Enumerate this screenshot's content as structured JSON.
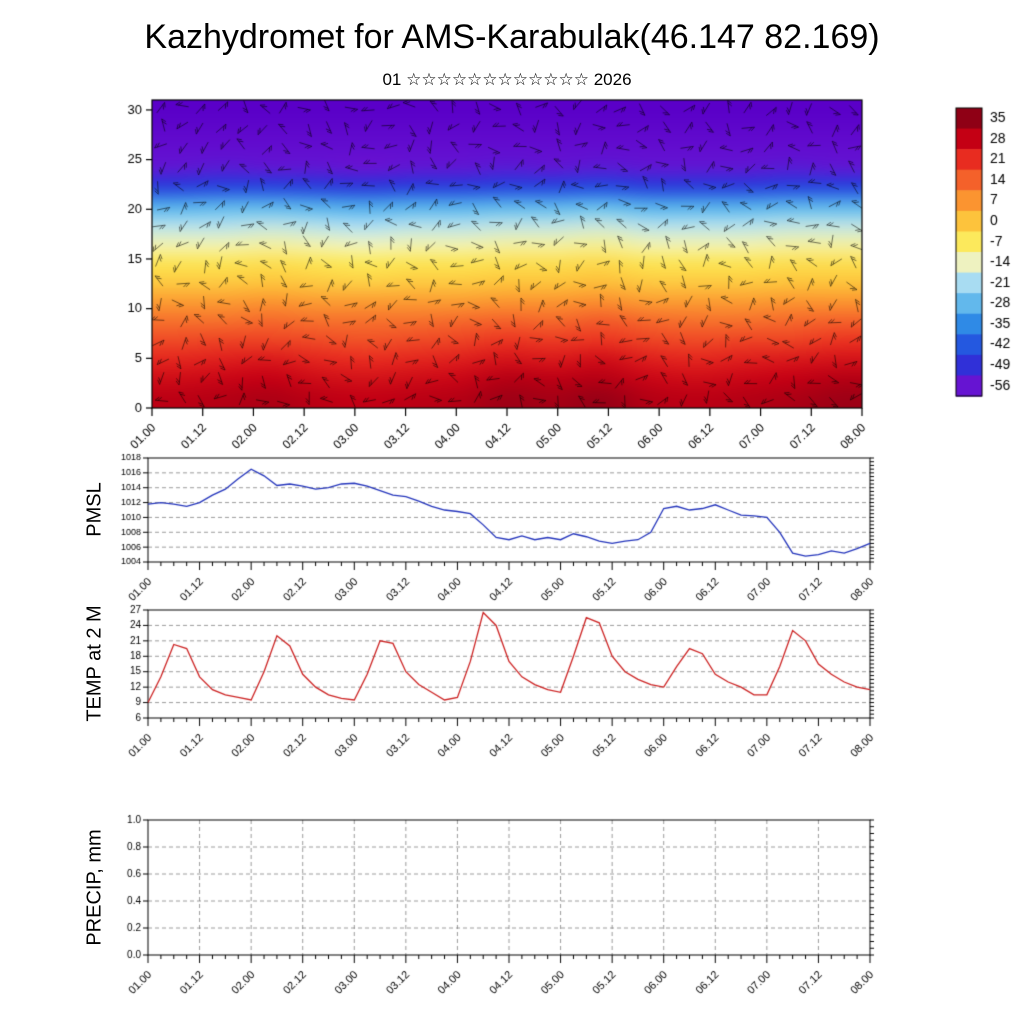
{
  "title": "Kazhydromet for AMS-Karabulak(46.147 82.169)",
  "subtitle": "01 ☆☆☆☆☆☆☆☆☆☆☆☆ 2026",
  "colors": {
    "pmsl_line": "#2233bb",
    "temp_line": "#cc2222",
    "axis": "#000000",
    "grid": "#808080"
  },
  "time_axis": {
    "major_labels": [
      "01.00",
      "01.12",
      "02.00",
      "02.12",
      "03.00",
      "03.12",
      "04.00",
      "04.12",
      "05.00",
      "05.12",
      "06.00",
      "06.12",
      "07.00",
      "07.12",
      "08.00"
    ],
    "minor_step_hours": 3,
    "major_step_hours": 12
  },
  "chart_data": [
    {
      "id": "upper_air_temperature",
      "type": "heatmap",
      "ylabel": "",
      "ylim": [
        0,
        31
      ],
      "yticks": [
        0,
        5,
        10,
        15,
        20,
        25,
        30
      ],
      "levels": [
        30,
        28,
        26,
        24,
        22,
        20,
        18,
        16,
        14,
        12,
        10,
        8,
        6,
        4,
        2,
        0
      ],
      "x_labels": [
        "01.00",
        "01.12",
        "02.00",
        "02.12",
        "03.00",
        "03.12",
        "04.00",
        "04.12",
        "05.00",
        "05.12",
        "06.00",
        "06.12",
        "07.00",
        "07.12",
        "08.00"
      ],
      "values": [
        [
          -62,
          -62,
          -62,
          -62,
          -62,
          -62,
          -62,
          -62,
          -62,
          -62,
          -62,
          -62,
          -62,
          -62,
          -62
        ],
        [
          -60,
          -60,
          -60,
          -60,
          -60,
          -60,
          -60,
          -60,
          -60,
          -60,
          -60,
          -60,
          -60,
          -60,
          -60
        ],
        [
          -58,
          -58,
          -58,
          -58,
          -58,
          -58,
          -58,
          -58,
          -58,
          -58,
          -58,
          -58,
          -58,
          -58,
          -58
        ],
        [
          -55,
          -54,
          -55,
          -55,
          -56,
          -55,
          -55,
          -54,
          -55,
          -54,
          -55,
          -55,
          -55,
          -54,
          -55
        ],
        [
          -46,
          -45,
          -45,
          -46,
          -47,
          -46,
          -46,
          -45,
          -45,
          -44,
          -46,
          -46,
          -46,
          -45,
          -45
        ],
        [
          -30,
          -29,
          -29,
          -30,
          -31,
          -30,
          -30,
          -29,
          -29,
          -28,
          -30,
          -30,
          -30,
          -29,
          -29
        ],
        [
          -20,
          -20,
          -19,
          -20,
          -21,
          -20,
          -20,
          -19,
          -19,
          -18,
          -20,
          -20,
          -20,
          -19,
          -19
        ],
        [
          -13,
          -13,
          -12,
          -13,
          -14,
          -13,
          -13,
          -12,
          -12,
          -11,
          -13,
          -13,
          -13,
          -12,
          -12
        ],
        [
          -6,
          -6,
          -5,
          -6,
          -7,
          -6,
          -6,
          -5,
          -5,
          -4,
          -6,
          -6,
          -6,
          -5,
          -5
        ],
        [
          -1,
          -1,
          0,
          -1,
          -2,
          -1,
          -1,
          0,
          0,
          1,
          -1,
          -1,
          -1,
          0,
          0
        ],
        [
          6,
          6,
          7,
          6,
          6,
          6,
          6,
          7,
          7,
          8,
          6,
          6,
          6,
          7,
          7
        ],
        [
          12,
          12,
          13,
          12,
          12,
          12,
          13,
          14,
          13,
          15,
          13,
          12,
          12,
          13,
          14
        ],
        [
          17,
          18,
          18,
          17,
          16,
          17,
          18,
          20,
          19,
          20,
          18,
          17,
          18,
          18,
          20
        ],
        [
          22,
          23,
          24,
          22,
          21,
          22,
          23,
          25,
          24,
          26,
          23,
          22,
          23,
          24,
          25
        ],
        [
          26,
          27,
          28,
          26,
          25,
          26,
          27,
          30,
          29,
          30,
          27,
          26,
          27,
          28,
          30
        ],
        [
          29,
          30,
          31,
          29,
          28,
          29,
          30,
          33,
          32,
          34,
          30,
          29,
          30,
          31,
          33
        ]
      ],
      "color_stops": [
        [
          -62,
          "#5a00c8"
        ],
        [
          -56,
          "#6614d2"
        ],
        [
          -49,
          "#3030d8"
        ],
        [
          -42,
          "#2458e0"
        ],
        [
          -35,
          "#2f8ae6"
        ],
        [
          -28,
          "#62b8ec"
        ],
        [
          -21,
          "#a8dcf2"
        ],
        [
          -14,
          "#eef2c0"
        ],
        [
          -7,
          "#fce95c"
        ],
        [
          0,
          "#fdc33c"
        ],
        [
          7,
          "#fb9430"
        ],
        [
          14,
          "#f4612a"
        ],
        [
          21,
          "#e82c20"
        ],
        [
          28,
          "#c40014"
        ],
        [
          35,
          "#8f0015"
        ],
        [
          40,
          "#6e0010"
        ]
      ],
      "colorbar_ticks": [
        35,
        28,
        21,
        14,
        7,
        0,
        -7,
        -14,
        -21,
        -28,
        -35,
        -42,
        -49,
        -56
      ]
    },
    {
      "id": "pmsl",
      "type": "line",
      "ylabel": "PMSL",
      "color": "#2233bb",
      "ylim": [
        1004,
        1018
      ],
      "yticks": [
        1004,
        1006,
        1008,
        1010,
        1012,
        1014,
        1016,
        1018
      ],
      "decimals": 0,
      "values": [
        1011.8,
        1012,
        1011.8,
        1011.5,
        1012,
        1013,
        1013.8,
        1015.2,
        1016.5,
        1015.6,
        1014.3,
        1014.5,
        1014.2,
        1013.8,
        1014,
        1014.5,
        1014.6,
        1014.2,
        1013.6,
        1013,
        1012.8,
        1012.2,
        1011.5,
        1011,
        1010.8,
        1010.5,
        1009,
        1007.3,
        1007,
        1007.5,
        1007,
        1007.3,
        1007,
        1007.8,
        1007.4,
        1006.8,
        1006.5,
        1006.8,
        1007,
        1008,
        1011.2,
        1011.5,
        1011,
        1011.2,
        1011.7,
        1011,
        1010.3,
        1010.2,
        1010,
        1008,
        1005.2,
        1004.8,
        1005,
        1005.5,
        1005.2,
        1005.8,
        1006.5
      ]
    },
    {
      "id": "temp_2m",
      "type": "line",
      "ylabel": "TEMP at 2 M",
      "color": "#cc2222",
      "ylim": [
        6,
        27
      ],
      "yticks": [
        6,
        9,
        12,
        15,
        18,
        21,
        24,
        27
      ],
      "decimals": 0,
      "values": [
        9,
        14,
        20.3,
        19.5,
        14,
        11.5,
        10.5,
        10,
        9.5,
        15,
        22,
        20,
        14.5,
        12,
        10.5,
        9.8,
        9.5,
        14.5,
        21,
        20.5,
        15,
        12.5,
        11,
        9.5,
        10,
        17,
        26.5,
        24,
        17,
        14,
        12.5,
        11.5,
        11,
        18,
        25.5,
        24.5,
        18,
        15,
        13.5,
        12.5,
        12,
        16,
        19.5,
        18.5,
        14.5,
        13,
        12,
        10.5,
        10.5,
        16,
        23,
        21,
        16.5,
        14.5,
        13,
        12,
        11.5
      ]
    },
    {
      "id": "precip",
      "type": "line",
      "ylabel": "PRECIP, mm",
      "color": null,
      "ylim": [
        0,
        1
      ],
      "yticks": [
        0,
        0.2,
        0.4,
        0.6,
        0.8,
        1.0
      ],
      "decimals": 1,
      "values": [
        0,
        0,
        0,
        0,
        0,
        0,
        0,
        0,
        0,
        0,
        0,
        0,
        0,
        0,
        0,
        0,
        0,
        0,
        0,
        0,
        0,
        0,
        0,
        0,
        0,
        0,
        0,
        0,
        0,
        0,
        0,
        0,
        0,
        0,
        0,
        0,
        0,
        0,
        0,
        0,
        0,
        0,
        0,
        0,
        0,
        0,
        0,
        0,
        0,
        0,
        0,
        0,
        0,
        0,
        0,
        0,
        0
      ]
    }
  ]
}
